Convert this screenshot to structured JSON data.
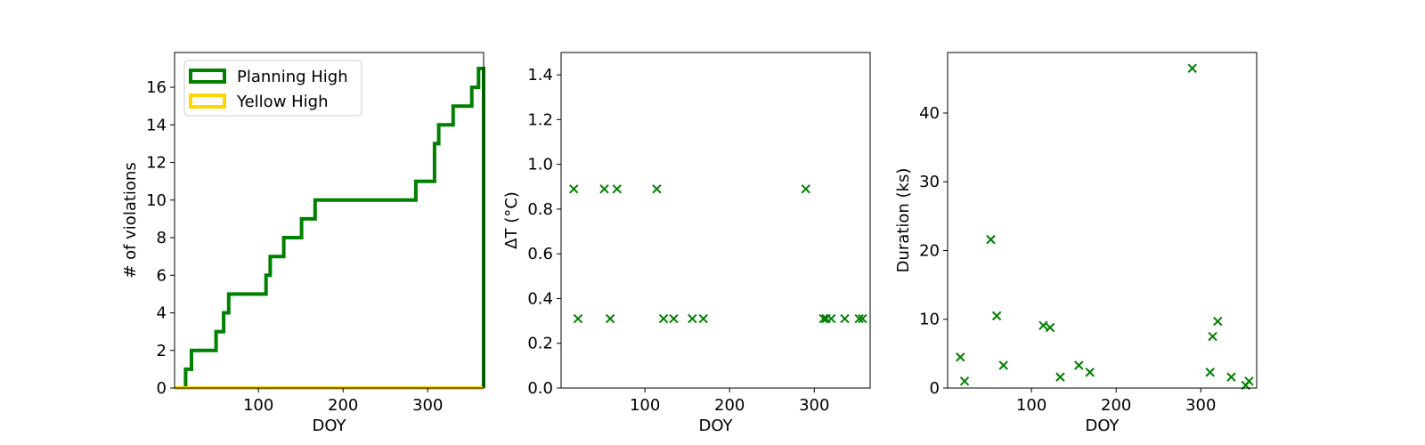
{
  "colors": {
    "green": "#008000",
    "yellow": "#FFD700",
    "axis": "#000000"
  },
  "chart_data": [
    {
      "type": "line",
      "subtype": "step",
      "xlabel": "DOY",
      "ylabel": "# of violations",
      "xlim": [
        1,
        366
      ],
      "ylim": [
        0,
        17.85
      ],
      "xticks": [
        100,
        200,
        300
      ],
      "yticks": [
        0,
        2,
        4,
        6,
        8,
        10,
        12,
        14,
        16
      ],
      "legend_position": "top-left",
      "series": [
        {
          "name": "Planning High",
          "color": "#008000",
          "steps": [
            [
              1,
              0
            ],
            [
              14,
              1
            ],
            [
              21,
              2
            ],
            [
              50,
              3
            ],
            [
              59,
              4
            ],
            [
              65,
              5
            ],
            [
              109,
              6
            ],
            [
              114,
              7
            ],
            [
              130,
              8
            ],
            [
              151,
              9
            ],
            [
              167,
              10
            ],
            [
              286,
              11
            ],
            [
              308,
              13
            ],
            [
              313,
              14
            ],
            [
              330,
              15
            ],
            [
              352,
              16
            ],
            [
              360,
              17
            ],
            [
              366,
              0
            ]
          ]
        },
        {
          "name": "Yellow High",
          "color": "#FFD700",
          "steps": [
            [
              1,
              0
            ],
            [
              366,
              0
            ]
          ]
        }
      ]
    },
    {
      "type": "scatter",
      "xlabel": "DOY",
      "ylabel": "ΔT (°C)",
      "xlim": [
        1,
        366
      ],
      "ylim": [
        0,
        1.5
      ],
      "xticks": [
        100,
        200,
        300
      ],
      "yticks": [
        0.0,
        0.2,
        0.4,
        0.6,
        0.8,
        1.0,
        1.2,
        1.4
      ],
      "marker": "x",
      "color": "#008000",
      "points": [
        [
          16,
          0.89
        ],
        [
          21,
          0.31
        ],
        [
          52,
          0.89
        ],
        [
          59,
          0.31
        ],
        [
          67,
          0.89
        ],
        [
          114,
          0.89
        ],
        [
          122,
          0.31
        ],
        [
          134,
          0.31
        ],
        [
          156,
          0.31
        ],
        [
          169,
          0.31
        ],
        [
          290,
          0.89
        ],
        [
          311,
          0.31
        ],
        [
          314,
          0.31
        ],
        [
          320,
          0.31
        ],
        [
          336,
          0.31
        ],
        [
          353,
          0.31
        ],
        [
          357,
          0.31
        ]
      ]
    },
    {
      "type": "scatter",
      "xlabel": "DOY",
      "ylabel": "Duration (ks)",
      "xlim": [
        1,
        366
      ],
      "ylim": [
        0,
        48.8
      ],
      "xticks": [
        100,
        200,
        300
      ],
      "yticks": [
        0,
        10,
        20,
        30,
        40
      ],
      "marker": "x",
      "color": "#008000",
      "points": [
        [
          16,
          4.5
        ],
        [
          21,
          1.0
        ],
        [
          52,
          21.6
        ],
        [
          59,
          10.5
        ],
        [
          67,
          3.3
        ],
        [
          114,
          9.1
        ],
        [
          122,
          8.8
        ],
        [
          134,
          1.6
        ],
        [
          156,
          3.3
        ],
        [
          169,
          2.3
        ],
        [
          290,
          46.5
        ],
        [
          311,
          2.3
        ],
        [
          314,
          7.5
        ],
        [
          320,
          9.7
        ],
        [
          336,
          1.6
        ],
        [
          353,
          0.4
        ],
        [
          357,
          1.0
        ]
      ]
    }
  ]
}
